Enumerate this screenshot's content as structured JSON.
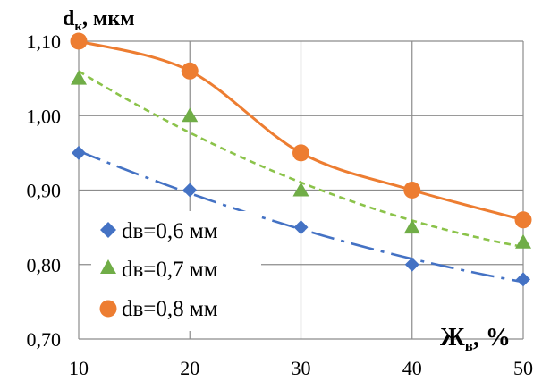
{
  "chart_data": {
    "type": "line",
    "x": [
      10,
      20,
      30,
      40,
      50
    ],
    "xlim": [
      10,
      50
    ],
    "ylim": [
      0.7,
      1.1
    ],
    "x_ticks": [
      "10",
      "20",
      "30",
      "40",
      "50"
    ],
    "y_ticks": [
      "0,70",
      "0,80",
      "0,90",
      "1,00",
      "1,10"
    ],
    "y_tick_values": [
      0.7,
      0.8,
      0.9,
      1.0,
      1.1
    ],
    "ylabel": {
      "main": "d",
      "sub": "к",
      "rest": ", мкм"
    },
    "xlabel": {
      "main": "Ж",
      "sub": "в",
      "rest": ", %"
    },
    "grid": true,
    "legend_position": "bottom-left",
    "series": [
      {
        "name": "dв=0,6 мм",
        "values": [
          0.95,
          0.9,
          0.85,
          0.8,
          0.78
        ],
        "marker": "diamond",
        "line_style": "dash-dot",
        "trend": "smooth",
        "color": "#4472C4"
      },
      {
        "name": "dв=0,7 мм",
        "values": [
          1.05,
          1.0,
          0.9,
          0.85,
          0.83
        ],
        "marker": "triangle",
        "line_style": "dashed",
        "trend": "smooth",
        "color": "#70AD47",
        "line_color": "#8BC34A"
      },
      {
        "name": "dв=0,8 мм",
        "values": [
          1.1,
          1.06,
          0.95,
          0.9,
          0.86
        ],
        "marker": "circle",
        "line_style": "solid",
        "trend": "smooth",
        "color": "#ED7D31"
      }
    ]
  }
}
